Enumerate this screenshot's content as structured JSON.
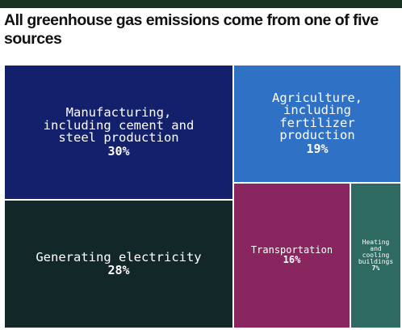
{
  "title": "All greenhouse gas emissions come from one of five sources",
  "chart_data": {
    "type": "treemap",
    "title": "All greenhouse gas emissions come from one of five sources",
    "unit": "%",
    "items": [
      {
        "label": "Manufacturing,\nincluding cement and\nsteel production",
        "value": 30,
        "value_label": "30%",
        "color": "#13206c"
      },
      {
        "label": "Agriculture,\nincluding\nfertilizer\nproduction",
        "value": 19,
        "value_label": "19%",
        "color": "#2f72c5"
      },
      {
        "label": "Generating electricity",
        "value": 28,
        "value_label": "28%",
        "color": "#122728"
      },
      {
        "label": "Transportation",
        "value": 16,
        "value_label": "16%",
        "color": "#892660"
      },
      {
        "label": "Heating\nand\ncooling\nbuildings",
        "value": 7,
        "value_label": "7%",
        "color": "#2e6a61"
      }
    ]
  }
}
